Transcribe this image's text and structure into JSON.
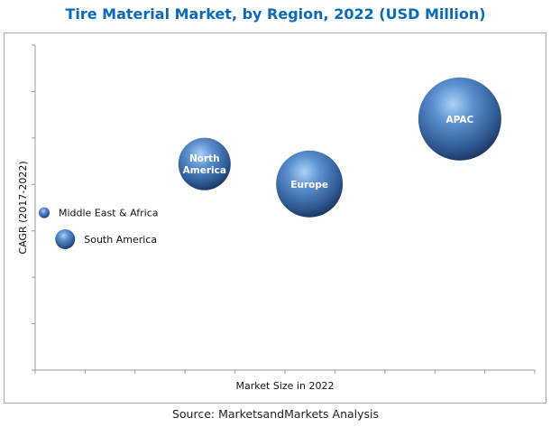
{
  "chart_data": {
    "type": "bubble",
    "title": "Tire Material Market, by Region, 2022 (USD Million)",
    "xlabel": "Market Size in 2022",
    "ylabel": "CAGR (2017-2022)",
    "xlim": [
      0,
      10
    ],
    "ylim": [
      0,
      7
    ],
    "x_tick_count": 10,
    "y_tick_count": 7,
    "grid": false,
    "bubble_color": "#3b6fb0",
    "series": [
      {
        "name": "Middle East & Africa",
        "x": 0.18,
        "y": 3.39,
        "size": 36,
        "label_position": "right"
      },
      {
        "name": "South America",
        "x": 0.6,
        "y": 2.82,
        "size": 121,
        "label_position": "right"
      },
      {
        "name": "North America",
        "x": 3.39,
        "y": 4.44,
        "size": 841,
        "label_position": "inside"
      },
      {
        "name": "Europe",
        "x": 5.49,
        "y": 4.01,
        "size": 1369,
        "label_position": "inside"
      },
      {
        "name": "APAC",
        "x": 8.5,
        "y": 5.41,
        "size": 2116,
        "label_position": "inside"
      }
    ]
  },
  "source": "Source: MarketsandMarkets Analysis"
}
